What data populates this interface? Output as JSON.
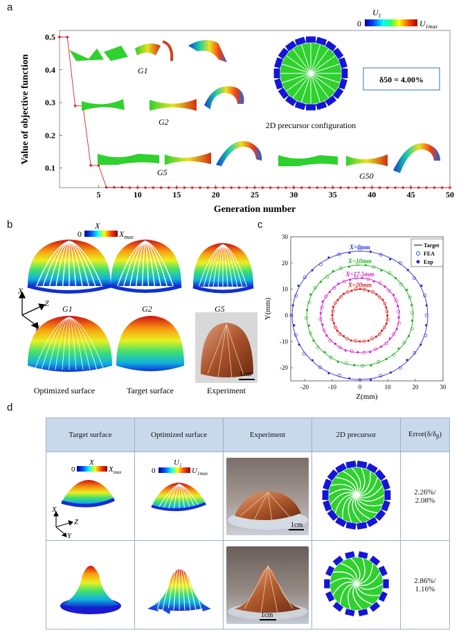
{
  "panel_labels": {
    "a": "a",
    "b": "b",
    "c": "c",
    "d": "d"
  },
  "panel_a": {
    "colorbar_title": "U",
    "colorbar_sub": "1",
    "colorbar_min": "0",
    "colorbar_max": "U",
    "colorbar_max_sub": "1max",
    "gen_labels": [
      "G1",
      "G2",
      "G5",
      "G50"
    ],
    "precursor_caption": "2D precursor configuration",
    "delta_box": "δ50 = 4.00%",
    "chart_data": {
      "type": "line",
      "xlabel": "Generation number",
      "ylabel": "Value of objective function",
      "xlim": [
        0,
        50
      ],
      "ylim": [
        0.04,
        0.52
      ],
      "xticks": [
        5,
        10,
        15,
        20,
        25,
        30,
        35,
        40,
        45,
        50
      ],
      "yticks": [
        0.1,
        0.2,
        0.3,
        0.4,
        0.5
      ],
      "x": [
        0,
        1,
        2,
        3,
        4,
        5,
        6,
        7,
        8,
        9,
        10,
        11,
        12,
        13,
        14,
        15,
        16,
        17,
        18,
        19,
        20,
        21,
        22,
        23,
        24,
        25,
        26,
        27,
        28,
        29,
        30,
        31,
        32,
        33,
        34,
        35,
        36,
        37,
        38,
        39,
        40,
        41,
        42,
        43,
        44,
        45,
        46,
        47,
        48,
        49,
        50
      ],
      "values": [
        0.5,
        0.5,
        0.29,
        0.29,
        0.108,
        0.108,
        0.041,
        0.041,
        0.041,
        0.04,
        0.04,
        0.04,
        0.04,
        0.04,
        0.04,
        0.04,
        0.04,
        0.04,
        0.04,
        0.04,
        0.04,
        0.04,
        0.04,
        0.04,
        0.04,
        0.04,
        0.04,
        0.04,
        0.04,
        0.04,
        0.04,
        0.04,
        0.04,
        0.04,
        0.04,
        0.04,
        0.04,
        0.04,
        0.04,
        0.04,
        0.04,
        0.04,
        0.04,
        0.04,
        0.04,
        0.04,
        0.04,
        0.04,
        0.04,
        0.04,
        0.04
      ],
      "series_color": "#e02020"
    }
  },
  "panel_b": {
    "colorbar_min": "0",
    "colorbar_title": "X",
    "colorbar_max": "X",
    "colorbar_max_sub": "max",
    "gen_labels": [
      "G1",
      "G2",
      "G5"
    ],
    "axes": {
      "x": "X",
      "y": "Y",
      "z": "Z"
    },
    "captions": [
      "Optimized surface",
      "Target surface",
      "Experiment"
    ],
    "scale_bar": "1cm"
  },
  "panel_c": {
    "chart_data": {
      "type": "scatter",
      "xlabel": "Z(mm)",
      "ylabel": "Y(mm)",
      "xlim": [
        -25,
        30
      ],
      "ylim": [
        -25,
        30
      ],
      "xticks": [
        -20,
        -10,
        0,
        10,
        20,
        30
      ],
      "yticks": [
        -20,
        -10,
        0,
        10,
        20,
        30
      ],
      "legend": [
        "Target",
        "FEA",
        "Exp"
      ],
      "legend_position": "top-right",
      "series": [
        {
          "name": "X=0mm",
          "radius": 24.5,
          "color": "#2b2bd6"
        },
        {
          "name": "X=10mm",
          "radius": 19.2,
          "color": "#22b022"
        },
        {
          "name": "X=17.5mm",
          "radius": 14.2,
          "color": "#d020d0"
        },
        {
          "name": "X=20mm",
          "radius": 10.0,
          "color": "#e02020"
        }
      ]
    }
  },
  "panel_d": {
    "headers": [
      "Target surface",
      "Optimized surface",
      "Experiment",
      "2D precursor",
      "Error(δ/δ"
    ],
    "header_sub": "β",
    "row1": {
      "cb_target_min": "0",
      "cb_target_title": "X",
      "cb_target_max": "X",
      "cb_target_max_sub": "max",
      "cb_opt_min": "0",
      "cb_opt_title": "U",
      "cb_opt_sub": "1",
      "cb_opt_max": "U",
      "cb_opt_max_sub": "1max",
      "axes": {
        "x": "X",
        "y": "Y",
        "z": "Z"
      },
      "scale_bar": "1cm",
      "error_line1": "2.26%/",
      "error_line2": "2.08%"
    },
    "row2": {
      "scale_bar": "1cm",
      "error_line1": "2.86%/",
      "error_line2": "1.16%"
    }
  },
  "colors": {
    "green": "#2ed12e",
    "blue": "#1515d8",
    "copper": "#b8663a",
    "header_bg": "#c9d9ec"
  }
}
